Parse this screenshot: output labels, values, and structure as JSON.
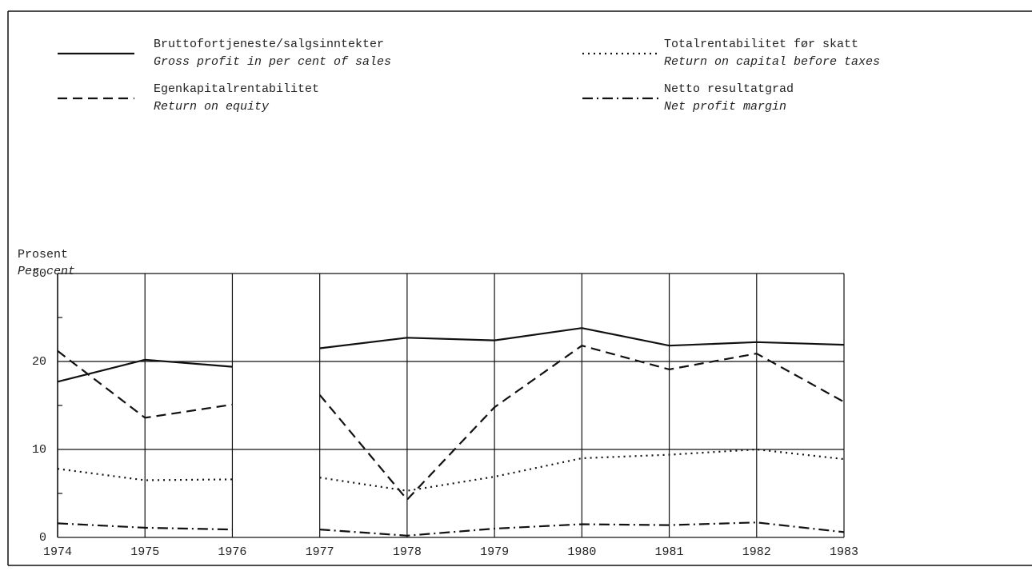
{
  "chart_data": {
    "type": "line",
    "y_label": "Prosent",
    "y_label_en": "Per cent",
    "x": [
      1974,
      1975,
      1976,
      null,
      1977,
      1978,
      1979,
      1980,
      1981,
      1982,
      1983
    ],
    "xlim": [
      1974,
      1983
    ],
    "xticks": [
      1974,
      1975,
      1976,
      1977,
      1978,
      1979,
      1980,
      1981,
      1982,
      1983
    ],
    "ylim": [
      0,
      30
    ],
    "yticks": [
      0,
      10,
      20,
      30
    ],
    "yminor": [
      5,
      15,
      25
    ],
    "grid": true,
    "series": [
      {
        "name": "Bruttofortjeneste/salgsinntekter",
        "name_en": "Gross profit in per cent of sales",
        "color": "#111",
        "style": "solid",
        "values": [
          17.7,
          20.2,
          19.4,
          null,
          21.5,
          22.7,
          22.4,
          23.8,
          21.8,
          22.2,
          21.9
        ]
      },
      {
        "name": "Egenkapitalrentabilitet",
        "name_en": "Return on equity",
        "color": "#111",
        "style": "dashed",
        "values": [
          21.2,
          13.6,
          15.1,
          null,
          16.2,
          4.3,
          14.8,
          21.8,
          19.1,
          20.9,
          15.4
        ]
      },
      {
        "name": "Totalrentabilitet før skatt",
        "name_en": "Return on capital before taxes",
        "color": "#111",
        "style": "dotted",
        "values": [
          7.8,
          6.5,
          6.6,
          null,
          6.8,
          5.3,
          6.9,
          9.0,
          9.4,
          10.0,
          8.9
        ]
      },
      {
        "name": "Netto resultatgrad",
        "name_en": "Net profit margin",
        "color": "#111",
        "style": "dashdot",
        "values": [
          1.6,
          1.1,
          0.9,
          null,
          0.9,
          0.2,
          1.0,
          1.5,
          1.4,
          1.7,
          0.6
        ]
      }
    ]
  }
}
